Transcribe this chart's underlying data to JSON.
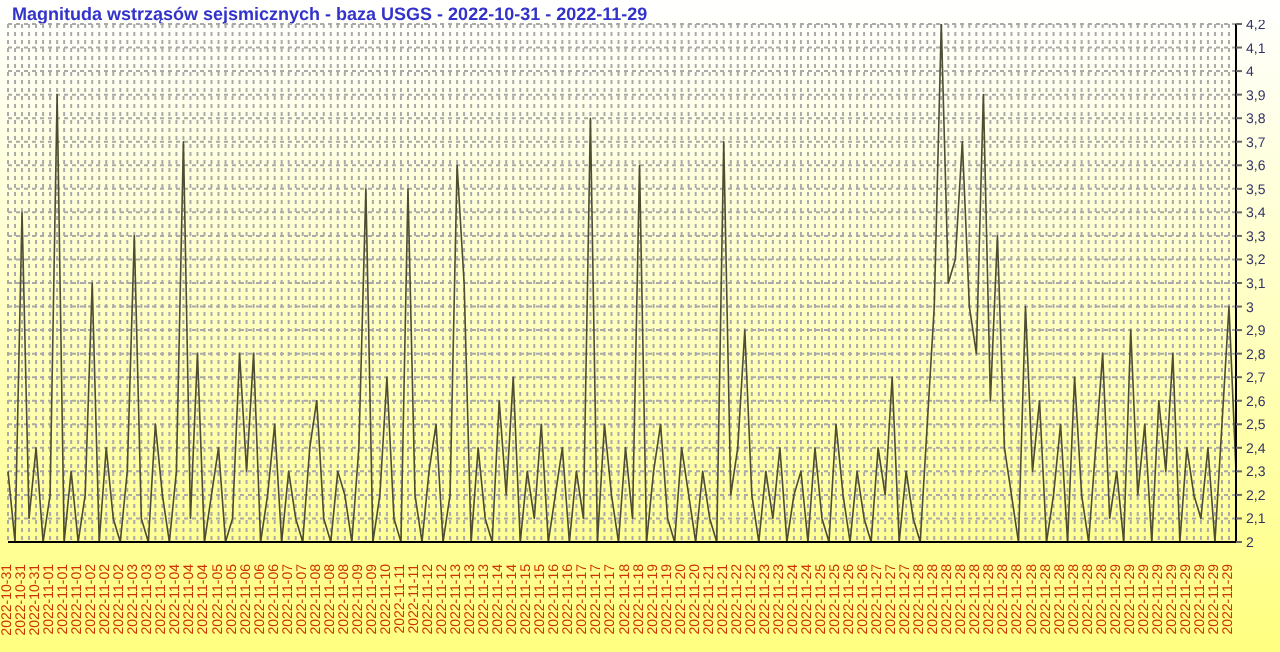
{
  "chart_data": {
    "type": "line",
    "title": "Magnituda wstrząsów sejsmicznych - baza USGS - 2022-10-31 - 2022-11-29",
    "categories": [
      "2022-10-31",
      null,
      "2022-10-31",
      null,
      "2022-10-31",
      null,
      "2022-11-01",
      null,
      "2022-11-01",
      null,
      "2022-11-01",
      null,
      "2022-11-02",
      null,
      "2022-11-02",
      null,
      "2022-11-02",
      null,
      "2022-11-03",
      null,
      "2022-11-03",
      null,
      "2022-11-03",
      null,
      "2022-11-04",
      null,
      "2022-11-04",
      null,
      "2022-11-04",
      null,
      "2022-11-05",
      null,
      "2022-11-05",
      null,
      "2022-11-06",
      null,
      "2022-11-06",
      null,
      "2022-11-06",
      null,
      "2022-11-07",
      null,
      "2022-11-07",
      null,
      "2022-11-08",
      null,
      "2022-11-08",
      null,
      "2022-11-08",
      null,
      "2022-11-09",
      null,
      "2022-11-09",
      null,
      "2022-11-10",
      null,
      "2022-11-11",
      null,
      "2022-11-11",
      null,
      "2022-11-12",
      null,
      "2022-11-12",
      null,
      "2022-11-13",
      null,
      "2022-11-13",
      null,
      "2022-11-13",
      null,
      "2022-11-14",
      null,
      "2022-11-14",
      null,
      "2022-11-15",
      null,
      "2022-11-15",
      null,
      "2022-11-16",
      null,
      "2022-11-16",
      null,
      "2022-11-17",
      null,
      "2022-11-17",
      null,
      "2022-11-17",
      null,
      "2022-11-18",
      null,
      "2022-11-18",
      null,
      "2022-11-19",
      null,
      "2022-11-19",
      null,
      "2022-11-20",
      null,
      "2022-11-20",
      null,
      "2022-11-21",
      null,
      "2022-11-21",
      null,
      "2022-11-22",
      null,
      "2022-11-22",
      null,
      "2022-11-23",
      null,
      "2022-11-23",
      null,
      "2022-11-24",
      null,
      "2022-11-24",
      null,
      "2022-11-25",
      null,
      "2022-11-25",
      null,
      "2022-11-26",
      null,
      "2022-11-26",
      null,
      "2022-11-27",
      null,
      "2022-11-27",
      null,
      "2022-11-27",
      null,
      "2022-11-28",
      null,
      "2022-11-28",
      null,
      "2022-11-28",
      null,
      "2022-11-28",
      null,
      "2022-11-28",
      null,
      "2022-11-28",
      null,
      "2022-11-28",
      null,
      "2022-11-28",
      null,
      "2022-11-28",
      null,
      "2022-11-28",
      null,
      "2022-11-28",
      null,
      "2022-11-28",
      null,
      "2022-11-28",
      null,
      "2022-11-28",
      null,
      "2022-11-29",
      null,
      "2022-11-29",
      null,
      "2022-11-29",
      null,
      "2022-11-29",
      null,
      "2022-11-29",
      null,
      "2022-11-29",
      null,
      "2022-11-29",
      null,
      "2022-11-29",
      null,
      "2022-11-29",
      null
    ],
    "series": [
      {
        "color": "#4d4d33",
        "values": [
          2.3,
          2.0,
          3.4,
          2.1,
          2.4,
          2.0,
          2.2,
          3.9,
          2.0,
          2.3,
          2.0,
          2.2,
          3.1,
          2.0,
          2.4,
          2.1,
          2.0,
          2.3,
          3.3,
          2.1,
          2.0,
          2.5,
          2.2,
          2.0,
          2.3,
          3.7,
          2.1,
          2.8,
          2.0,
          2.2,
          2.4,
          2.0,
          2.1,
          2.8,
          2.3,
          2.8,
          2.0,
          2.2,
          2.5,
          2.0,
          2.3,
          2.1,
          2.0,
          2.4,
          2.6,
          2.1,
          2.0,
          2.3,
          2.2,
          2.0,
          2.4,
          3.5,
          2.0,
          2.2,
          2.7,
          2.1,
          2.0,
          3.5,
          2.2,
          2.0,
          2.3,
          2.5,
          2.0,
          2.2,
          3.6,
          3.1,
          2.0,
          2.4,
          2.1,
          2.0,
          2.6,
          2.2,
          2.7,
          2.0,
          2.3,
          2.1,
          2.5,
          2.0,
          2.2,
          2.4,
          2.0,
          2.3,
          2.1,
          3.8,
          2.0,
          2.5,
          2.2,
          2.0,
          2.4,
          2.1,
          3.6,
          2.0,
          2.3,
          2.5,
          2.1,
          2.0,
          2.4,
          2.2,
          2.0,
          2.3,
          2.1,
          2.0,
          3.7,
          2.2,
          2.4,
          2.9,
          2.2,
          2.0,
          2.3,
          2.1,
          2.4,
          2.0,
          2.2,
          2.3,
          2.0,
          2.4,
          2.1,
          2.0,
          2.5,
          2.2,
          2.0,
          2.3,
          2.1,
          2.0,
          2.4,
          2.2,
          2.7,
          2.0,
          2.3,
          2.1,
          2.0,
          2.5,
          3.0,
          4.2,
          3.1,
          3.2,
          3.7,
          3.0,
          2.8,
          3.9,
          2.6,
          3.3,
          2.4,
          2.2,
          2.0,
          3.0,
          2.3,
          2.6,
          2.0,
          2.2,
          2.5,
          2.0,
          2.7,
          2.2,
          2.0,
          2.4,
          2.8,
          2.1,
          2.3,
          2.0,
          2.9,
          2.2,
          2.5,
          2.0,
          2.6,
          2.3,
          2.8,
          2.0,
          2.4,
          2.2,
          2.1,
          2.4,
          2.0,
          2.5,
          3.0,
          2.3
        ]
      }
    ],
    "ylim": [
      2,
      4.2
    ],
    "yticks": [
      2,
      {
        "value": 2.1,
        "label": "2,1"
      },
      {
        "value": 2.2,
        "label": "2,2"
      },
      {
        "value": 2.3,
        "label": "2,3"
      },
      {
        "value": 2.4,
        "label": "2,4"
      },
      {
        "value": 2.5,
        "label": "2,5"
      },
      {
        "value": 2.6,
        "label": "2,6"
      },
      {
        "value": 2.7,
        "label": "2,7"
      },
      {
        "value": 2.8,
        "label": "2,8"
      },
      {
        "value": 2.9,
        "label": "2,9"
      },
      3,
      {
        "value": 3.1,
        "label": "3,1"
      },
      {
        "value": 3.2,
        "label": "3,2"
      },
      {
        "value": 3.3,
        "label": "3,3"
      },
      {
        "value": 3.4,
        "label": "3,4"
      },
      {
        "value": 3.5,
        "label": "3,5"
      },
      {
        "value": 3.6,
        "label": "3,6"
      },
      {
        "value": 3.7,
        "label": "3,7"
      },
      {
        "value": 3.8,
        "label": "3,8"
      },
      {
        "value": 3.9,
        "label": "3,9"
      },
      4,
      {
        "value": 4.1,
        "label": "4,1"
      },
      {
        "value": 4.2,
        "label": "4,2"
      }
    ],
    "grid": true,
    "marker": "none",
    "line_style": "solid"
  }
}
